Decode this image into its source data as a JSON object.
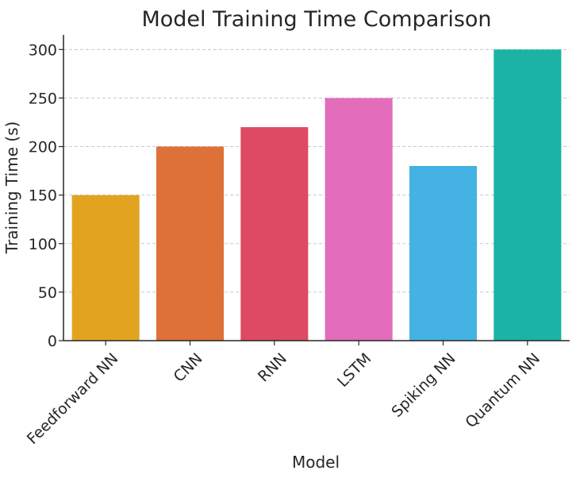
{
  "chart_data": {
    "type": "bar",
    "title": "Model Training Time Comparison",
    "xlabel": "Model",
    "ylabel": "Training Time (s)",
    "categories": [
      "Feedforward NN",
      "CNN",
      "RNN",
      "LSTM",
      "Spiking NN",
      "Quantum NN"
    ],
    "values": [
      150,
      200,
      220,
      250,
      180,
      300
    ],
    "colors": [
      "#e2a320",
      "#dd7138",
      "#de4a63",
      "#e36cbb",
      "#44b2e3",
      "#1bb3a5"
    ],
    "ylim": [
      0,
      315
    ],
    "yticks": [
      0,
      50,
      100,
      150,
      200,
      250,
      300
    ],
    "grid": true
  }
}
